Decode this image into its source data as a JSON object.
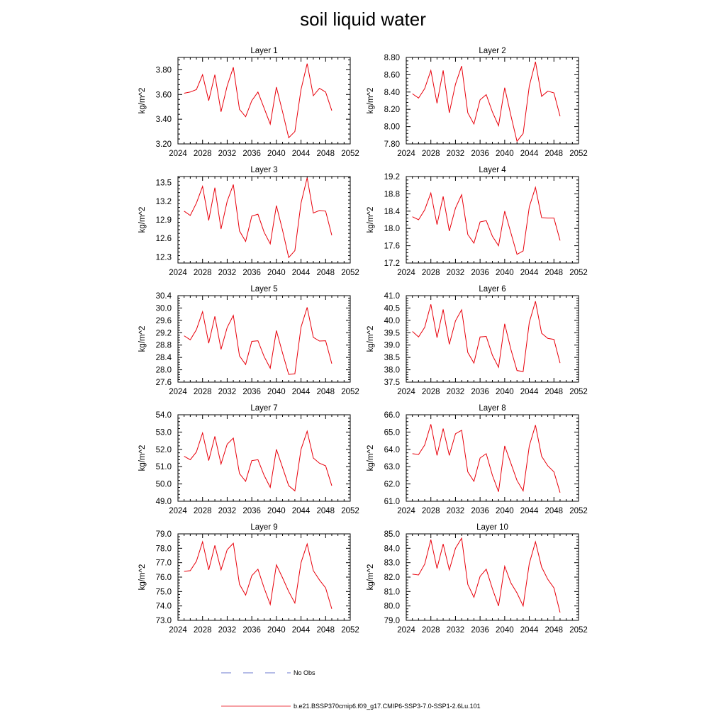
{
  "title": "soil liquid water",
  "colors": {
    "model_line": "#e8000b",
    "obs_line": "#3b4cc0"
  },
  "legend": {
    "obs_label": "No Obs",
    "model_label": "b.e21.BSSP370cmip6.f09_g17.CMIP6-SSP3-7.0-SSP1-2.6Lu.101"
  },
  "chart_data": [
    {
      "type": "line",
      "title": "Layer 1",
      "ylabel": "kg/m^2",
      "xlim": [
        2024,
        2052
      ],
      "ylim": [
        3.2,
        3.9
      ],
      "x_ticks": [
        "2024",
        "2028",
        "2032",
        "2036",
        "2040",
        "2044",
        "2048",
        "2052"
      ],
      "y_ticks": [
        "3.20",
        "3.40",
        "3.60",
        "3.80"
      ],
      "y_tick_values": [
        3.2,
        3.4,
        3.6,
        3.8
      ],
      "x": [
        2025,
        2026,
        2027,
        2028,
        2029,
        2030,
        2031,
        2032,
        2033,
        2034,
        2035,
        2036,
        2037,
        2038,
        2039,
        2040,
        2041,
        2042,
        2043,
        2044,
        2045,
        2046,
        2047,
        2048,
        2049
      ],
      "values": [
        3.61,
        3.62,
        3.64,
        3.76,
        3.55,
        3.76,
        3.46,
        3.67,
        3.82,
        3.48,
        3.42,
        3.55,
        3.62,
        3.49,
        3.36,
        3.66,
        3.46,
        3.25,
        3.3,
        3.64,
        3.85,
        3.59,
        3.65,
        3.62,
        3.47
      ]
    },
    {
      "type": "line",
      "title": "Layer 2",
      "ylabel": "kg/m^2",
      "xlim": [
        2024,
        2052
      ],
      "ylim": [
        7.8,
        8.8
      ],
      "x_ticks": [
        "2024",
        "2028",
        "2032",
        "2036",
        "2040",
        "2044",
        "2048",
        "2052"
      ],
      "y_ticks": [
        "7.80",
        "8.00",
        "8.20",
        "8.40",
        "8.60",
        "8.80"
      ],
      "y_tick_values": [
        7.8,
        8.0,
        8.2,
        8.4,
        8.6,
        8.8
      ],
      "x": [
        2025,
        2026,
        2027,
        2028,
        2029,
        2030,
        2031,
        2032,
        2033,
        2034,
        2035,
        2036,
        2037,
        2038,
        2039,
        2040,
        2041,
        2042,
        2043,
        2044,
        2045,
        2046,
        2047,
        2048,
        2049
      ],
      "values": [
        8.38,
        8.33,
        8.44,
        8.65,
        8.27,
        8.65,
        8.16,
        8.49,
        8.7,
        8.16,
        8.03,
        8.31,
        8.37,
        8.17,
        8.01,
        8.45,
        8.13,
        7.83,
        7.92,
        8.47,
        8.75,
        8.35,
        8.41,
        8.39,
        8.12
      ]
    },
    {
      "type": "line",
      "title": "Layer 3",
      "ylabel": "kg/m^2",
      "xlim": [
        2024,
        2052
      ],
      "ylim": [
        12.2,
        13.6
      ],
      "x_ticks": [
        "2024",
        "2028",
        "2032",
        "2036",
        "2040",
        "2044",
        "2048",
        "2052"
      ],
      "y_ticks": [
        "12.3",
        "12.6",
        "12.9",
        "13.2",
        "13.5"
      ],
      "y_tick_values": [
        12.3,
        12.6,
        12.9,
        13.2,
        13.5
      ],
      "x": [
        2025,
        2026,
        2027,
        2028,
        2029,
        2030,
        2031,
        2032,
        2033,
        2034,
        2035,
        2036,
        2037,
        2038,
        2039,
        2040,
        2041,
        2042,
        2043,
        2044,
        2045,
        2046,
        2047,
        2048,
        2049
      ],
      "values": [
        13.04,
        12.97,
        13.17,
        13.44,
        12.89,
        13.42,
        12.75,
        13.2,
        13.47,
        12.72,
        12.55,
        12.96,
        12.99,
        12.7,
        12.51,
        13.13,
        12.73,
        12.29,
        12.4,
        13.17,
        13.58,
        13.01,
        13.05,
        13.04,
        12.65
      ]
    },
    {
      "type": "line",
      "title": "Layer 4",
      "ylabel": "kg/m^2",
      "xlim": [
        2024,
        2052
      ],
      "ylim": [
        17.2,
        19.2
      ],
      "x_ticks": [
        "2024",
        "2028",
        "2032",
        "2036",
        "2040",
        "2044",
        "2048",
        "2052"
      ],
      "y_ticks": [
        "17.2",
        "17.6",
        "18.0",
        "18.4",
        "18.8",
        "19.2"
      ],
      "y_tick_values": [
        17.2,
        17.6,
        18.0,
        18.4,
        18.8,
        19.2
      ],
      "x": [
        2025,
        2026,
        2027,
        2028,
        2029,
        2030,
        2031,
        2032,
        2033,
        2034,
        2035,
        2036,
        2037,
        2038,
        2039,
        2040,
        2041,
        2042,
        2043,
        2044,
        2045,
        2046,
        2047,
        2048,
        2049
      ],
      "values": [
        18.27,
        18.2,
        18.43,
        18.82,
        18.09,
        18.74,
        17.94,
        18.47,
        18.78,
        17.86,
        17.66,
        18.15,
        18.18,
        17.82,
        17.6,
        18.4,
        17.9,
        17.4,
        17.48,
        18.5,
        18.95,
        18.25,
        18.24,
        18.24,
        17.72
      ]
    },
    {
      "type": "line",
      "title": "Layer 5",
      "ylabel": "kg/m^2",
      "xlim": [
        2024,
        2052
      ],
      "ylim": [
        27.6,
        30.4
      ],
      "x_ticks": [
        "2024",
        "2028",
        "2032",
        "2036",
        "2040",
        "2044",
        "2048",
        "2052"
      ],
      "y_ticks": [
        "27.6",
        "28.0",
        "28.4",
        "28.8",
        "29.2",
        "29.6",
        "30.0",
        "30.4"
      ],
      "y_tick_values": [
        27.6,
        28.0,
        28.4,
        28.8,
        29.2,
        29.6,
        30.0,
        30.4
      ],
      "x": [
        2025,
        2026,
        2027,
        2028,
        2029,
        2030,
        2031,
        2032,
        2033,
        2034,
        2035,
        2036,
        2037,
        2038,
        2039,
        2040,
        2041,
        2042,
        2043,
        2044,
        2045,
        2046,
        2047,
        2048,
        2049
      ],
      "values": [
        29.1,
        28.97,
        29.3,
        29.88,
        28.86,
        29.73,
        28.66,
        29.37,
        29.76,
        28.45,
        28.17,
        28.92,
        28.94,
        28.43,
        28.05,
        29.27,
        28.54,
        27.85,
        27.87,
        29.38,
        30.02,
        29.05,
        28.93,
        28.94,
        28.2
      ]
    },
    {
      "type": "line",
      "title": "Layer 6",
      "ylabel": "kg/m^2",
      "xlim": [
        2024,
        2052
      ],
      "ylim": [
        37.5,
        41.0
      ],
      "x_ticks": [
        "2024",
        "2028",
        "2032",
        "2036",
        "2040",
        "2044",
        "2048",
        "2052"
      ],
      "y_ticks": [
        "37.5",
        "38.0",
        "38.5",
        "39.0",
        "39.5",
        "40.0",
        "40.5",
        "41.0"
      ],
      "y_tick_values": [
        37.5,
        38.0,
        38.5,
        39.0,
        39.5,
        40.0,
        40.5,
        41.0
      ],
      "x": [
        2025,
        2026,
        2027,
        2028,
        2029,
        2030,
        2031,
        2032,
        2033,
        2034,
        2035,
        2036,
        2037,
        2038,
        2039,
        2040,
        2041,
        2042,
        2043,
        2044,
        2045,
        2046,
        2047,
        2048,
        2049
      ],
      "values": [
        39.55,
        39.33,
        39.72,
        40.65,
        39.3,
        40.44,
        39.03,
        39.98,
        40.43,
        38.7,
        38.27,
        39.33,
        39.35,
        38.59,
        38.1,
        39.86,
        38.83,
        37.97,
        37.93,
        39.92,
        40.77,
        39.48,
        39.27,
        39.23,
        38.27
      ]
    },
    {
      "type": "line",
      "title": "Layer 7",
      "ylabel": "kg/m^2",
      "xlim": [
        2024,
        2052
      ],
      "ylim": [
        49.0,
        54.0
      ],
      "x_ticks": [
        "2024",
        "2028",
        "2032",
        "2036",
        "2040",
        "2044",
        "2048",
        "2052"
      ],
      "y_ticks": [
        "49.0",
        "50.0",
        "51.0",
        "52.0",
        "53.0",
        "54.0"
      ],
      "y_tick_values": [
        49.0,
        50.0,
        51.0,
        52.0,
        53.0,
        54.0
      ],
      "x": [
        2025,
        2026,
        2027,
        2028,
        2029,
        2030,
        2031,
        2032,
        2033,
        2034,
        2035,
        2036,
        2037,
        2038,
        2039,
        2040,
        2041,
        2042,
        2043,
        2044,
        2045,
        2046,
        2047,
        2048,
        2049
      ],
      "values": [
        51.6,
        51.4,
        51.85,
        52.95,
        51.35,
        52.75,
        51.15,
        52.3,
        52.65,
        50.6,
        50.15,
        51.35,
        51.4,
        50.5,
        49.8,
        52.0,
        50.95,
        49.9,
        49.6,
        52.0,
        53.05,
        51.5,
        51.2,
        51.05,
        49.9
      ]
    },
    {
      "type": "line",
      "title": "Layer 8",
      "ylabel": "kg/m^2",
      "xlim": [
        2024,
        2052
      ],
      "ylim": [
        61.0,
        66.0
      ],
      "x_ticks": [
        "2024",
        "2028",
        "2032",
        "2036",
        "2040",
        "2044",
        "2048",
        "2052"
      ],
      "y_ticks": [
        "61.0",
        "62.0",
        "63.0",
        "64.0",
        "65.0",
        "66.0"
      ],
      "y_tick_values": [
        61.0,
        62.0,
        63.0,
        64.0,
        65.0,
        66.0
      ],
      "x": [
        2025,
        2026,
        2027,
        2028,
        2029,
        2030,
        2031,
        2032,
        2033,
        2034,
        2035,
        2036,
        2037,
        2038,
        2039,
        2040,
        2041,
        2042,
        2043,
        2044,
        2045,
        2046,
        2047,
        2048,
        2049
      ],
      "values": [
        63.75,
        63.7,
        64.25,
        65.45,
        63.65,
        65.2,
        63.65,
        64.9,
        65.1,
        62.7,
        62.15,
        63.5,
        63.75,
        62.5,
        61.55,
        64.2,
        63.2,
        62.2,
        61.6,
        64.2,
        65.4,
        63.6,
        63.05,
        62.7,
        61.5
      ]
    },
    {
      "type": "line",
      "title": "Layer 9",
      "ylabel": "kg/m^2",
      "xlim": [
        2024,
        2052
      ],
      "ylim": [
        73.0,
        79.0
      ],
      "x_ticks": [
        "2024",
        "2028",
        "2032",
        "2036",
        "2040",
        "2044",
        "2048",
        "2052"
      ],
      "y_ticks": [
        "73.0",
        "74.0",
        "75.0",
        "76.0",
        "77.0",
        "78.0",
        "79.0"
      ],
      "y_tick_values": [
        73.0,
        74.0,
        75.0,
        76.0,
        77.0,
        78.0,
        79.0
      ],
      "x": [
        2025,
        2026,
        2027,
        2028,
        2029,
        2030,
        2031,
        2032,
        2033,
        2034,
        2035,
        2036,
        2037,
        2038,
        2039,
        2040,
        2041,
        2042,
        2043,
        2044,
        2045,
        2046,
        2047,
        2048,
        2049
      ],
      "values": [
        76.4,
        76.45,
        77.1,
        78.45,
        76.5,
        78.2,
        76.5,
        77.9,
        78.35,
        75.5,
        74.75,
        76.1,
        76.55,
        75.25,
        74.1,
        76.85,
        75.95,
        75.0,
        74.2,
        77.0,
        78.3,
        76.45,
        75.8,
        75.25,
        73.8
      ]
    },
    {
      "type": "line",
      "title": "Layer 10",
      "ylabel": "kg/m^2",
      "xlim": [
        2024,
        2052
      ],
      "ylim": [
        79.0,
        85.0
      ],
      "x_ticks": [
        "2024",
        "2028",
        "2032",
        "2036",
        "2040",
        "2044",
        "2048",
        "2052"
      ],
      "y_ticks": [
        "79.0",
        "80.0",
        "81.0",
        "82.0",
        "83.0",
        "84.0",
        "85.0"
      ],
      "y_tick_values": [
        79.0,
        80.0,
        81.0,
        82.0,
        83.0,
        84.0,
        85.0
      ],
      "x": [
        2025,
        2026,
        2027,
        2028,
        2029,
        2030,
        2031,
        2032,
        2033,
        2034,
        2035,
        2036,
        2037,
        2038,
        2039,
        2040,
        2041,
        2042,
        2043,
        2044,
        2045,
        2046,
        2047,
        2048,
        2049
      ],
      "values": [
        82.2,
        82.15,
        82.9,
        84.6,
        82.6,
        84.3,
        82.5,
        84.0,
        84.7,
        81.5,
        80.6,
        82.05,
        82.55,
        81.2,
        80.0,
        82.75,
        81.6,
        80.9,
        80.0,
        82.95,
        84.45,
        82.7,
        81.85,
        81.25,
        79.55
      ]
    }
  ]
}
